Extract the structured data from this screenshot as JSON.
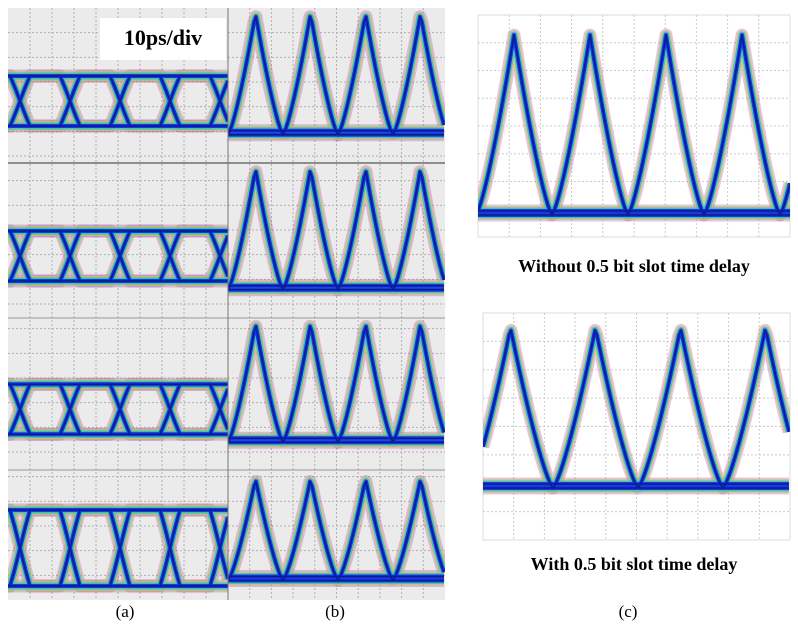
{
  "left_panel": {
    "scale_label": "10ps/div",
    "labels": [
      "(a)",
      "(b)"
    ]
  },
  "right_panel": {
    "top_caption": "Without 0.5 bit slot time delay",
    "bottom_caption": "With 0.5 bit slot time delay",
    "label": "(c)"
  }
}
